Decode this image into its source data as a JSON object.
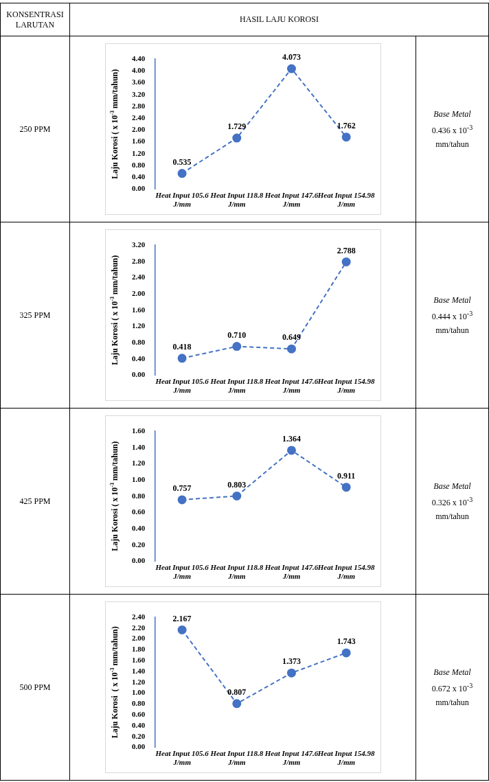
{
  "chart_data": [
    {
      "type": "line",
      "ylabel": "Laju Korosi ( x 10$^{-3}$ mm/tahun)",
      "categories": [
        "Heat Input 105.6 J/mm",
        "Heat Input 118.8 J/mm",
        "Heat Input 147.6 J/mm",
        "Heat Input 154.98 J/mm"
      ],
      "values": [
        0.535,
        1.729,
        4.073,
        1.762
      ],
      "value_labels": [
        "0.535",
        "1.729",
        "4.073",
        "1.762"
      ],
      "color": "#4472c4",
      "marker": "circle",
      "line_style": "dashed",
      "legend": false,
      "grid": false,
      "ylim": [
        0,
        4.4
      ],
      "yticks": [
        {
          "value": 0,
          "label": "0.00"
        },
        {
          "value": 0.4,
          "label": "0.40"
        },
        {
          "value": 0.8,
          "label": "0.80"
        },
        {
          "value": 1.2,
          "label": "1.20"
        },
        {
          "value": 1.6,
          "label": "1.60"
        },
        {
          "value": 2,
          "label": "2.00"
        },
        {
          "value": 2.4,
          "label": "2.40"
        },
        {
          "value": 2.8,
          "label": "2.80"
        },
        {
          "value": 3.2,
          "label": "3.20"
        },
        {
          "value": 3.6,
          "label": "3.60"
        },
        {
          "value": 4,
          "label": "4.00"
        },
        {
          "value": 4.4,
          "label": "4.40"
        }
      ],
      "annotations": [
        "KONSENTRASI LARUTAN",
        "HASIL LAJU KOROSI",
        "250 PPM",
        "Base Metal",
        "0.436 x 10$^{-3}$ mm/tahun"
      ]
    },
    {
      "type": "line",
      "ylabel": "Laju Korosi ( x 10$^{-3}$ mm/tahun)",
      "categories": [
        "Heat Input 105.6 J/mm",
        "Heat Input 118.8 J/mm",
        "Heat Input 147.6 J/mm",
        "Heat Input 154.98 J/mm"
      ],
      "values": [
        0.418,
        0.71,
        0.649,
        2.788
      ],
      "value_labels": [
        "0.418",
        "0.710",
        "0.649",
        "2.788"
      ],
      "color": "#4472c4",
      "marker": "circle",
      "line_style": "dashed",
      "legend": false,
      "grid": false,
      "ylim": [
        0,
        3.2
      ],
      "yticks": [
        {
          "value": 0,
          "label": "0.00"
        },
        {
          "value": 0.4,
          "label": "0.40"
        },
        {
          "value": 0.8,
          "label": "0.80"
        },
        {
          "value": 1.2,
          "label": "1.20"
        },
        {
          "value": 1.6,
          "label": "1.60"
        },
        {
          "value": 2,
          "label": "2.00"
        },
        {
          "value": 2.4,
          "label": "2.40"
        },
        {
          "value": 2.8,
          "label": "2.80"
        },
        {
          "value": 3.2,
          "label": "3.20"
        }
      ],
      "annotations": [
        "325 PPM",
        "Base Metal",
        "0.444 x 10$^{-3}$ mm/tahun"
      ]
    },
    {
      "type": "line",
      "ylabel": "Laju Korosi ( x 10$^{-3}$ mm/tahun)",
      "categories": [
        "Heat Input 105.6 J/mm",
        "Heat Input 118.8 J/mm",
        "Heat Input 147.6 J/mm",
        "Heat Input 154.98 J/mm"
      ],
      "values": [
        0.757,
        0.803,
        1.364,
        0.911
      ],
      "value_labels": [
        "0.757",
        "0.803",
        "1.364",
        "0.911"
      ],
      "color": "#4472c4",
      "marker": "circle",
      "line_style": "dashed",
      "legend": false,
      "grid": false,
      "ylim": [
        0,
        1.6
      ],
      "yticks": [
        {
          "value": 0,
          "label": "0.00"
        },
        {
          "value": 0.2,
          "label": "0.20"
        },
        {
          "value": 0.4,
          "label": "0.40"
        },
        {
          "value": 0.6,
          "label": "0.60"
        },
        {
          "value": 0.8,
          "label": "0.80"
        },
        {
          "value": 1,
          "label": "1.00"
        },
        {
          "value": 1.2,
          "label": "1.20"
        },
        {
          "value": 1.4,
          "label": "1.40"
        },
        {
          "value": 1.6,
          "label": "1.60"
        }
      ],
      "annotations": [
        "425 PPM",
        "Base Metal",
        "0.326 x 10$^{-3}$ mm/tahun"
      ]
    },
    {
      "type": "line",
      "ylabel": "Laju Korosi  ( x 10$^{-3}$ mm/tahun)",
      "categories": [
        "Heat Input 105.6 J/mm",
        "Heat Input 118.8 J/mm",
        "Heat Input 147.6 J/mm",
        "Heat Input 154.98 J/mm"
      ],
      "values": [
        2.167,
        0.807,
        1.373,
        1.743
      ],
      "value_labels": [
        "2.167",
        "0.807",
        "1.373",
        "1.743"
      ],
      "color": "#4472c4",
      "marker": "circle",
      "line_style": "dashed",
      "legend": false,
      "grid": false,
      "ylim": [
        0,
        2.4
      ],
      "yticks": [
        {
          "value": 0,
          "label": "0.00"
        },
        {
          "value": 0.2,
          "label": "0.20"
        },
        {
          "value": 0.4,
          "label": "0.40"
        },
        {
          "value": 0.6,
          "label": "0.60"
        },
        {
          "value": 0.8,
          "label": "0.80"
        },
        {
          "value": 1,
          "label": "1.00"
        },
        {
          "value": 1.2,
          "label": "1.20"
        },
        {
          "value": 1.4,
          "label": "1.40"
        },
        {
          "value": 1.6,
          "label": "1.60"
        },
        {
          "value": 1.8,
          "label": "1.80"
        },
        {
          "value": 2,
          "label": "2.00"
        },
        {
          "value": 2.2,
          "label": "2.20"
        },
        {
          "value": 2.4,
          "label": "2.40"
        }
      ],
      "annotations": [
        "500 PPM",
        "Base Metal",
        "0.672 x 10$^{-3}$ mm/tahun"
      ]
    }
  ]
}
